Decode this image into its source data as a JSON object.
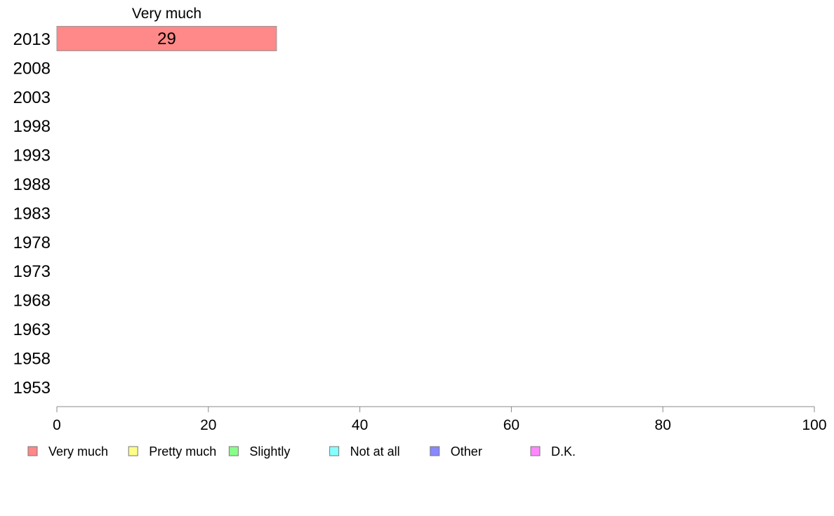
{
  "chart_data": {
    "type": "bar",
    "orientation": "horizontal",
    "stacked": true,
    "categories": [
      "2013",
      "2008",
      "2003",
      "1998",
      "1993",
      "1988",
      "1983",
      "1978",
      "1973",
      "1968",
      "1963",
      "1958",
      "1953"
    ],
    "series": [
      {
        "name": "Very much",
        "color": "#ff8888",
        "values": [
          29,
          null,
          null,
          null,
          null,
          null,
          null,
          null,
          null,
          null,
          null,
          null,
          null
        ]
      },
      {
        "name": "Pretty much",
        "color": "#ffff88",
        "values": [
          null,
          null,
          null,
          null,
          null,
          null,
          null,
          null,
          null,
          null,
          null,
          null,
          null
        ]
      },
      {
        "name": "Slightly",
        "color": "#88ff88",
        "values": [
          null,
          null,
          null,
          null,
          null,
          null,
          null,
          null,
          null,
          null,
          null,
          null,
          null
        ]
      },
      {
        "name": "Not at all",
        "color": "#88ffff",
        "values": [
          null,
          null,
          null,
          null,
          null,
          null,
          null,
          null,
          null,
          null,
          null,
          null,
          null
        ]
      },
      {
        "name": "Other",
        "color": "#8888ff",
        "values": [
          null,
          null,
          null,
          null,
          null,
          null,
          null,
          null,
          null,
          null,
          null,
          null,
          null
        ]
      },
      {
        "name": "D.K.",
        "color": "#ff88ff",
        "values": [
          null,
          null,
          null,
          null,
          null,
          null,
          null,
          null,
          null,
          null,
          null,
          null,
          null
        ]
      }
    ],
    "series_header": "Very much",
    "xlim": [
      0,
      100
    ],
    "xticks": [
      0,
      20,
      40,
      60,
      80,
      100
    ],
    "grid": false,
    "legend_position": "bottom"
  }
}
